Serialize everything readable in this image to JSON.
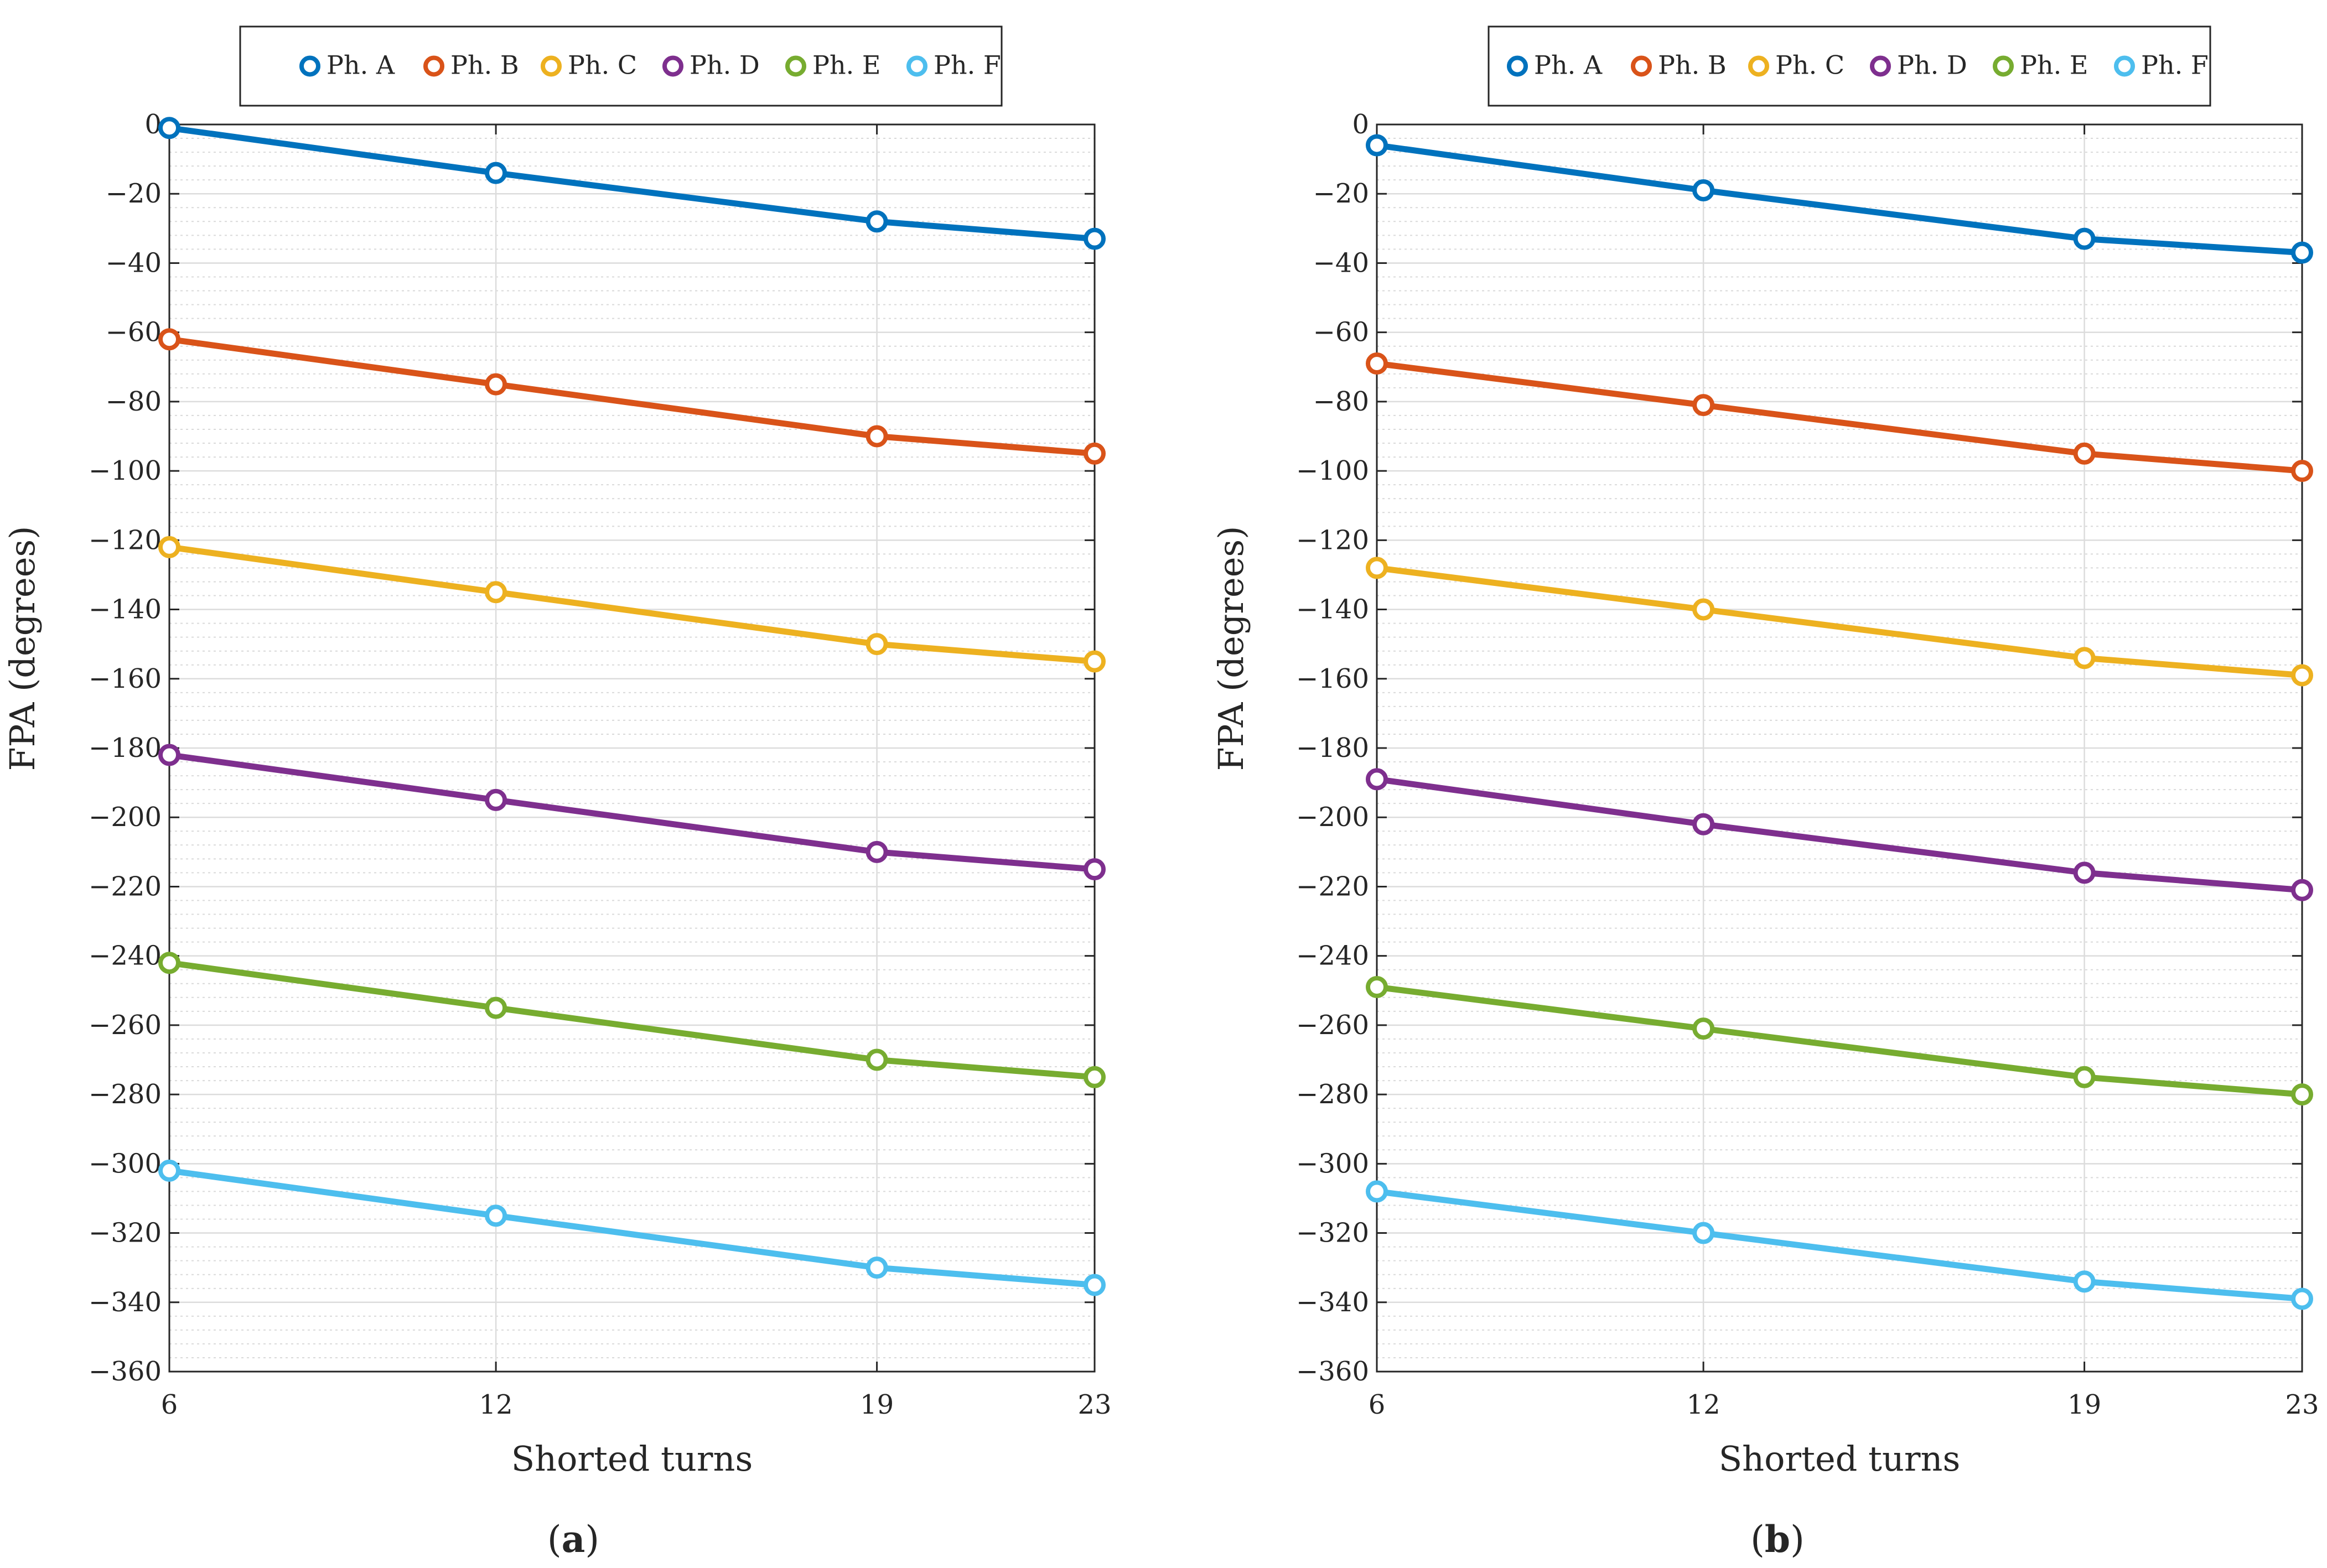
{
  "chart_data": [
    {
      "type": "line",
      "panel_label": "(a)",
      "xlabel": "Shorted turns",
      "ylabel": "FPA (degrees)",
      "x": [
        6,
        12,
        19,
        23
      ],
      "x_tick_labels": [
        "6",
        "12",
        "19",
        "23"
      ],
      "ylim": [
        -360,
        0
      ],
      "y_ticks": [
        0,
        -20,
        -40,
        -60,
        -80,
        -100,
        -120,
        -140,
        -160,
        -180,
        -200,
        -220,
        -240,
        -260,
        -280,
        -300,
        -320,
        -340,
        -360
      ],
      "y_tick_labels": [
        "0",
        "−20",
        "−40",
        "−60",
        "−80",
        "−100",
        "−120",
        "−140",
        "−160",
        "−180",
        "−200",
        "−220",
        "−240",
        "−260",
        "−280",
        "−300",
        "−320",
        "−340",
        "−360"
      ],
      "grid": true,
      "legend_position": "top",
      "series": [
        {
          "name": "Ph. A",
          "color": "#0072BD",
          "values": [
            -1,
            -14,
            -28,
            -33
          ]
        },
        {
          "name": "Ph. B",
          "color": "#D95319",
          "values": [
            -62,
            -75,
            -90,
            -95
          ]
        },
        {
          "name": "Ph. C",
          "color": "#EDB120",
          "values": [
            -122,
            -135,
            -150,
            -155
          ]
        },
        {
          "name": "Ph. D",
          "color": "#7E2F8E",
          "values": [
            -182,
            -195,
            -210,
            -215
          ]
        },
        {
          "name": "Ph. E",
          "color": "#77AC30",
          "values": [
            -242,
            -255,
            -270,
            -275
          ]
        },
        {
          "name": "Ph. F",
          "color": "#4DBEEE",
          "values": [
            -302,
            -315,
            -330,
            -335
          ]
        }
      ]
    },
    {
      "type": "line",
      "panel_label": "(b)",
      "xlabel": "Shorted turns",
      "ylabel": "FPA (degrees)",
      "x": [
        6,
        12,
        19,
        23
      ],
      "x_tick_labels": [
        "6",
        "12",
        "19",
        "23"
      ],
      "ylim": [
        -360,
        0
      ],
      "y_ticks": [
        0,
        -20,
        -40,
        -60,
        -80,
        -100,
        -120,
        -140,
        -160,
        -180,
        -200,
        -220,
        -240,
        -260,
        -280,
        -300,
        -320,
        -340,
        -360
      ],
      "y_tick_labels": [
        "0",
        "−20",
        "−40",
        "−60",
        "−80",
        "−100",
        "−120",
        "−140",
        "−160",
        "−180",
        "−200",
        "−220",
        "−240",
        "−260",
        "−280",
        "−300",
        "−320",
        "−340",
        "−360"
      ],
      "grid": true,
      "legend_position": "top",
      "series": [
        {
          "name": "Ph. A",
          "color": "#0072BD",
          "values": [
            -6,
            -19,
            -33,
            -37
          ]
        },
        {
          "name": "Ph. B",
          "color": "#D95319",
          "values": [
            -69,
            -81,
            -95,
            -100
          ]
        },
        {
          "name": "Ph. C",
          "color": "#EDB120",
          "values": [
            -128,
            -140,
            -154,
            -159
          ]
        },
        {
          "name": "Ph. D",
          "color": "#7E2F8E",
          "values": [
            -189,
            -202,
            -216,
            -221
          ]
        },
        {
          "name": "Ph. E",
          "color": "#77AC30",
          "values": [
            -249,
            -261,
            -275,
            -280
          ]
        },
        {
          "name": "Ph. F",
          "color": "#4DBEEE",
          "values": [
            -308,
            -320,
            -334,
            -339
          ]
        }
      ]
    }
  ]
}
